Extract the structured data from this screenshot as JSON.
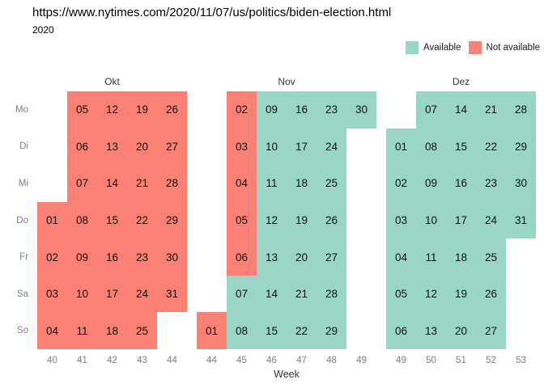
{
  "chart_data": {
    "type": "heatmap",
    "title": "https://www.nytimes.com/2020/11/07/us/politics/biden-election.html",
    "subtitle": "2020",
    "xlabel": "Week",
    "legend_position": "top-right",
    "grid": false,
    "day_labels": [
      "Mo",
      "Di",
      "Mi",
      "Do",
      "Fr",
      "Sa",
      "So"
    ],
    "legend": [
      {
        "label": "Available",
        "status": "a",
        "color": "#99d6c5"
      },
      {
        "label": "Not available",
        "status": "n",
        "color": "#fa8173"
      }
    ],
    "months": [
      {
        "label": "Okt",
        "weeks": [
          "40",
          "41",
          "42",
          "43",
          "44"
        ],
        "columns": [
          [
            null,
            null,
            null,
            {
              "d": "01",
              "s": "n"
            },
            {
              "d": "02",
              "s": "n"
            },
            {
              "d": "03",
              "s": "n"
            },
            {
              "d": "04",
              "s": "n"
            }
          ],
          [
            {
              "d": "05",
              "s": "n"
            },
            {
              "d": "06",
              "s": "n"
            },
            {
              "d": "07",
              "s": "n"
            },
            {
              "d": "08",
              "s": "n"
            },
            {
              "d": "09",
              "s": "n"
            },
            {
              "d": "10",
              "s": "n"
            },
            {
              "d": "11",
              "s": "n"
            }
          ],
          [
            {
              "d": "12",
              "s": "n"
            },
            {
              "d": "13",
              "s": "n"
            },
            {
              "d": "14",
              "s": "n"
            },
            {
              "d": "15",
              "s": "n"
            },
            {
              "d": "16",
              "s": "n"
            },
            {
              "d": "17",
              "s": "n"
            },
            {
              "d": "18",
              "s": "n"
            }
          ],
          [
            {
              "d": "19",
              "s": "n"
            },
            {
              "d": "20",
              "s": "n"
            },
            {
              "d": "21",
              "s": "n"
            },
            {
              "d": "22",
              "s": "n"
            },
            {
              "d": "23",
              "s": "n"
            },
            {
              "d": "24",
              "s": "n"
            },
            {
              "d": "25",
              "s": "n"
            }
          ],
          [
            {
              "d": "26",
              "s": "n"
            },
            {
              "d": "27",
              "s": "n"
            },
            {
              "d": "28",
              "s": "n"
            },
            {
              "d": "29",
              "s": "n"
            },
            {
              "d": "30",
              "s": "n"
            },
            {
              "d": "31",
              "s": "n"
            },
            null
          ]
        ]
      },
      {
        "label": "Nov",
        "weeks": [
          "44",
          "45",
          "46",
          "47",
          "48",
          "49"
        ],
        "columns": [
          [
            null,
            null,
            null,
            null,
            null,
            null,
            {
              "d": "01",
              "s": "n"
            }
          ],
          [
            {
              "d": "02",
              "s": "n"
            },
            {
              "d": "03",
              "s": "n"
            },
            {
              "d": "04",
              "s": "n"
            },
            {
              "d": "05",
              "s": "n"
            },
            {
              "d": "06",
              "s": "n"
            },
            {
              "d": "07",
              "s": "a"
            },
            {
              "d": "08",
              "s": "a"
            }
          ],
          [
            {
              "d": "09",
              "s": "a"
            },
            {
              "d": "10",
              "s": "a"
            },
            {
              "d": "11",
              "s": "a"
            },
            {
              "d": "12",
              "s": "a"
            },
            {
              "d": "13",
              "s": "a"
            },
            {
              "d": "14",
              "s": "a"
            },
            {
              "d": "15",
              "s": "a"
            }
          ],
          [
            {
              "d": "16",
              "s": "a"
            },
            {
              "d": "17",
              "s": "a"
            },
            {
              "d": "18",
              "s": "a"
            },
            {
              "d": "19",
              "s": "a"
            },
            {
              "d": "20",
              "s": "a"
            },
            {
              "d": "21",
              "s": "a"
            },
            {
              "d": "22",
              "s": "a"
            }
          ],
          [
            {
              "d": "23",
              "s": "a"
            },
            {
              "d": "24",
              "s": "a"
            },
            {
              "d": "25",
              "s": "a"
            },
            {
              "d": "26",
              "s": "a"
            },
            {
              "d": "27",
              "s": "a"
            },
            {
              "d": "28",
              "s": "a"
            },
            {
              "d": "29",
              "s": "a"
            }
          ],
          [
            {
              "d": "30",
              "s": "a"
            },
            null,
            null,
            null,
            null,
            null,
            null
          ]
        ]
      },
      {
        "label": "Dez",
        "weeks": [
          "49",
          "50",
          "51",
          "52",
          "53"
        ],
        "columns": [
          [
            null,
            {
              "d": "01",
              "s": "a"
            },
            {
              "d": "02",
              "s": "a"
            },
            {
              "d": "03",
              "s": "a"
            },
            {
              "d": "04",
              "s": "a"
            },
            {
              "d": "05",
              "s": "a"
            },
            {
              "d": "06",
              "s": "a"
            }
          ],
          [
            {
              "d": "07",
              "s": "a"
            },
            {
              "d": "08",
              "s": "a"
            },
            {
              "d": "09",
              "s": "a"
            },
            {
              "d": "10",
              "s": "a"
            },
            {
              "d": "11",
              "s": "a"
            },
            {
              "d": "12",
              "s": "a"
            },
            {
              "d": "13",
              "s": "a"
            }
          ],
          [
            {
              "d": "14",
              "s": "a"
            },
            {
              "d": "15",
              "s": "a"
            },
            {
              "d": "16",
              "s": "a"
            },
            {
              "d": "17",
              "s": "a"
            },
            {
              "d": "18",
              "s": "a"
            },
            {
              "d": "19",
              "s": "a"
            },
            {
              "d": "20",
              "s": "a"
            }
          ],
          [
            {
              "d": "21",
              "s": "a"
            },
            {
              "d": "22",
              "s": "a"
            },
            {
              "d": "23",
              "s": "a"
            },
            {
              "d": "24",
              "s": "a"
            },
            {
              "d": "25",
              "s": "a"
            },
            {
              "d": "26",
              "s": "a"
            },
            {
              "d": "27",
              "s": "a"
            }
          ],
          [
            {
              "d": "28",
              "s": "a"
            },
            {
              "d": "29",
              "s": "a"
            },
            {
              "d": "30",
              "s": "a"
            },
            {
              "d": "31",
              "s": "a"
            },
            null,
            null,
            null
          ]
        ]
      }
    ]
  }
}
